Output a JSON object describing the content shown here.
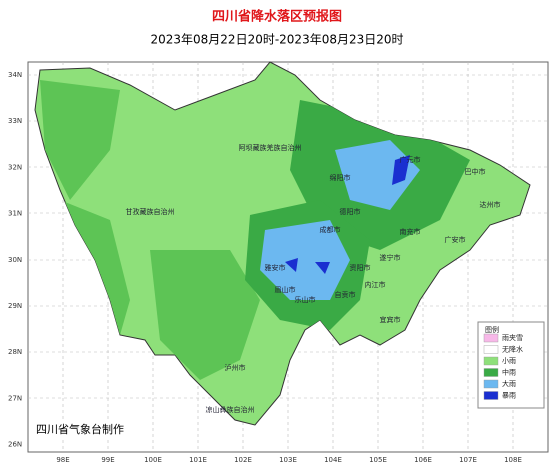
{
  "header": {
    "title": "四川省降水落区预报图",
    "subtitle": "2023年08月22日20时-2023年08月23日20时"
  },
  "axes": {
    "lat": [
      "34N",
      "33N",
      "32N",
      "31N",
      "30N",
      "29N",
      "28N",
      "27N",
      "26N"
    ],
    "lon": [
      "98E",
      "99E",
      "100E",
      "101E",
      "102E",
      "103E",
      "104E",
      "105E",
      "106E",
      "107E",
      "108E"
    ]
  },
  "regions": [
    "阿坝藏族羌族自治州",
    "甘孜藏族自治州",
    "绵阳市",
    "广元市",
    "巴中市",
    "达州市",
    "德阳市",
    "成都市",
    "南充市",
    "遂宁市",
    "广安市",
    "雅安市",
    "眉山市",
    "资阳市",
    "内江市",
    "乐山市",
    "自贡市",
    "宜宾市",
    "泸州市",
    "凉山彝族自治州",
    "攀枝花市"
  ],
  "legend": {
    "title": "图例",
    "items": [
      "雨夹雪",
      "无降水",
      "小雨",
      "中雨",
      "大雨",
      "暴雨"
    ]
  },
  "footer": "四川省气象台制作"
}
